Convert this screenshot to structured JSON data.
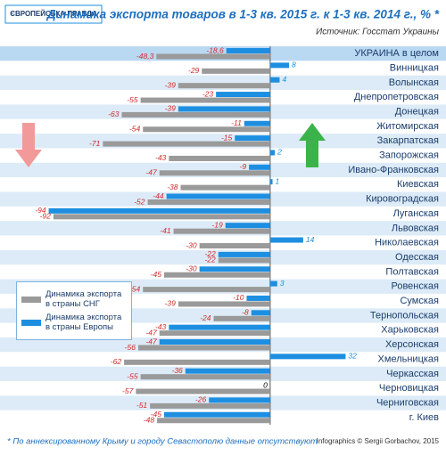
{
  "chart_data": {
    "type": "hbar",
    "logo": "ЄВРОПЕЙСЬКА ПРАВДА",
    "title": "Динамика экспорта товаров в 1-3 кв. 2015 г.  к 1-3 кв. 2014 г., % *",
    "source": "Источник: Госстат Украины",
    "footnote": "* По аннексированному Крыму и городу Севастополю данные отсутствуют",
    "credit": "Infographics © Sergii Gorbachov, 2015",
    "categories": [
      "УКРАИНА в целом",
      "Винницкая",
      "Волынская",
      "Днепропетровская",
      "Донецкая",
      "Житомирская",
      "Закарпатская",
      "Запорожская",
      "Ивано-Франковская",
      "Киевская",
      "Кировоградская",
      "Луганская",
      "Львовская",
      "Николаевская",
      "Одесская",
      "Полтавская",
      "Ровенская",
      "Сумская",
      "Тернопольская",
      "Харьковская",
      "Херсонская",
      "Хмельницкая",
      "Черкасская",
      "Черновицкая",
      "Черниговская",
      "г. Киев"
    ],
    "series": [
      {
        "name": "Динамика экспорта в страны СНГ",
        "color": "#9a9a9a",
        "values": [
          -48.3,
          -29,
          -39,
          -55,
          -63,
          -54,
          -71,
          -43,
          -47,
          -38,
          -52,
          -92,
          -41,
          -30,
          -22,
          -45,
          -54,
          -39,
          -24,
          -47,
          -56,
          -62,
          -55,
          -57,
          -51,
          -48
        ],
        "value_labels": [
          "-48,3",
          "-29",
          "-39",
          "-55",
          "-63",
          "-54",
          "-71",
          "-43",
          "-47",
          "-38",
          "-52",
          "-92",
          "-41",
          "-30",
          "-22",
          "-45",
          "-54",
          "-39",
          "-24",
          "-47",
          "-56",
          "-62",
          "-55",
          "-57",
          "-51",
          "-48"
        ]
      },
      {
        "name": "Динамика экспорта в страны Европы",
        "color": "#1e8fe0",
        "values": [
          -18.6,
          8,
          4,
          -23,
          -39,
          -11,
          -15,
          2,
          -9,
          1,
          -44,
          -94,
          -19,
          14,
          -22,
          -30,
          3,
          -10,
          -8,
          -43,
          -47,
          32,
          -36,
          0,
          -26,
          -45
        ],
        "value_labels": [
          "-18,6",
          "8",
          "4",
          "-23",
          "-39",
          "-11",
          "-15",
          "2",
          "-9",
          "1",
          "-44",
          "-94",
          "-19",
          "14",
          "-22",
          "-30",
          "3",
          "-10",
          "-8",
          "-43",
          "-47",
          "32",
          "-36",
          "0",
          "-26",
          "-45"
        ]
      }
    ],
    "xlim": [
      -98,
      36
    ]
  }
}
